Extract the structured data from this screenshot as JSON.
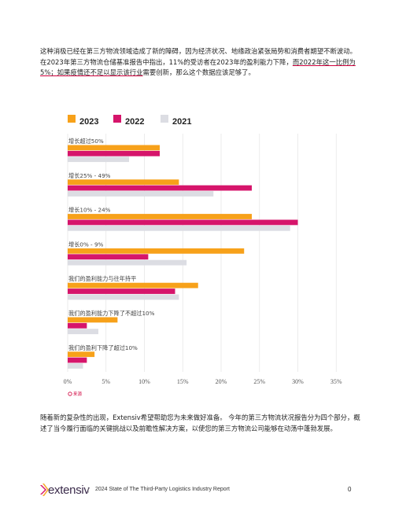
{
  "intro_text": {
    "part1": "这种消极已经在第三方物流领域造成了新的障碍，因为经济状况、地缘政治紧张局势和消费者期望不断波动。在2023年第三方物流仓储基准报告中指出，11%的受访者在2023年的盈利能力下降，",
    "part2": "而2022年这一比例为5%；如果疫情还不足以显示该行业",
    "part3": "需要创新，那么这个数据应该足够了。"
  },
  "chart_data": {
    "type": "bar",
    "orientation": "horizontal",
    "categories": [
      "增长超过50%",
      "增长25% - 49%",
      "增长10% - 24%",
      "增长0% - 9%",
      "我们的盈利能力与往年持平",
      "我们的盈利能力下降了不超过10%",
      "我们的盈利下降了超过10%"
    ],
    "series": [
      {
        "name": "2023",
        "color": "#f7a11a",
        "values": [
          12.0,
          14.5,
          24.0,
          23.0,
          17.0,
          6.5,
          3.5
        ]
      },
      {
        "name": "2022",
        "color": "#d6156b",
        "values": [
          12.0,
          24.0,
          30.0,
          10.5,
          14.0,
          2.5,
          2.5
        ]
      },
      {
        "name": "2021",
        "color": "#dcdde3",
        "values": [
          8.0,
          19.0,
          29.0,
          15.5,
          14.5,
          4.0,
          2.0
        ]
      }
    ],
    "xlim": [
      0,
      35
    ],
    "xticks": [
      "0%",
      "5%",
      "10%",
      "15%",
      "20%",
      "25%",
      "30%",
      "35%"
    ],
    "legend_position": "top-left",
    "grid": true,
    "source_label": "来源"
  },
  "closing_text": "随着新的复杂性的出现，Extensiv希望帮助您为未来做好准备。 今年的第三方物流状况报告分为四个部分，概述了当今履行面临的关键挑战以及前瞻性解决方案，以使您的第三方物流公司能够在动荡中蓬勃发展。",
  "footer": {
    "logo_text": "extensiv",
    "separator": "|",
    "report_title": "2024 State of The Third-Party Logistics Industry Report",
    "page_number": "0"
  }
}
